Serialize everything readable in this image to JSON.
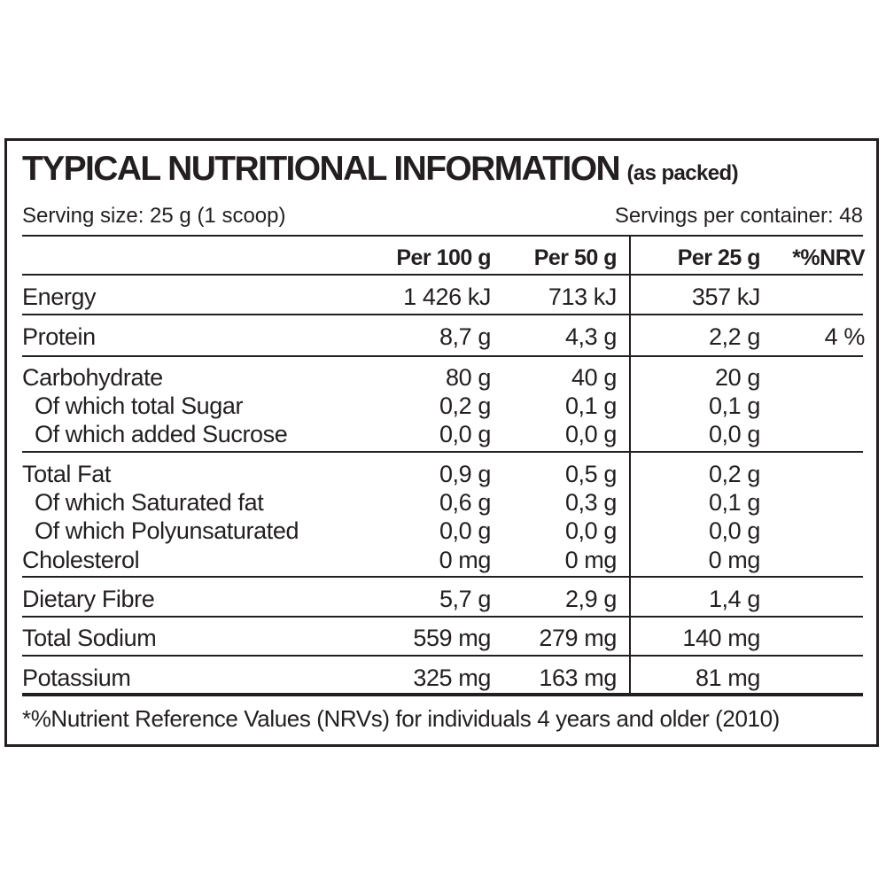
{
  "title": "TYPICAL NUTRITIONAL INFORMATION",
  "title_suffix": "(as packed)",
  "serving_size": "Serving size: 25 g (1 scoop)",
  "servings_per_container": "Servings per container: 48",
  "columns": {
    "per100": "Per 100 g",
    "per50": "Per 50 g",
    "per25": "Per 25 g",
    "nrv": "*%NRV"
  },
  "rows": {
    "energy": {
      "label": "Energy",
      "per100": "1 426 kJ",
      "per50": "713 kJ",
      "per25": "357 kJ",
      "nrv": ""
    },
    "protein": {
      "label": "Protein",
      "per100": "8,7 g",
      "per50": "4,3 g",
      "per25": "2,2 g",
      "nrv": "4 %"
    },
    "carbohydrate": {
      "label": "Carbohydrate",
      "per100": "80 g",
      "per50": "40 g",
      "per25": "20 g",
      "nrv": ""
    },
    "total_sugar": {
      "label": "Of which total Sugar",
      "per100": "0,2 g",
      "per50": "0,1 g",
      "per25": "0,1 g",
      "nrv": ""
    },
    "added_sucrose": {
      "label": "Of which added Sucrose",
      "per100": "0,0 g",
      "per50": "0,0 g",
      "per25": "0,0 g",
      "nrv": ""
    },
    "total_fat": {
      "label": "Total Fat",
      "per100": "0,9 g",
      "per50": "0,5 g",
      "per25": "0,2 g",
      "nrv": ""
    },
    "saturated_fat": {
      "label": "Of which Saturated fat",
      "per100": "0,6 g",
      "per50": "0,3 g",
      "per25": "0,1 g",
      "nrv": ""
    },
    "polyunsaturated": {
      "label": "Of which Polyunsaturated",
      "per100": "0,0 g",
      "per50": "0,0 g",
      "per25": "0,0 g",
      "nrv": ""
    },
    "cholesterol": {
      "label": "Cholesterol",
      "per100": "0 mg",
      "per50": "0 mg",
      "per25": "0 mg",
      "nrv": ""
    },
    "dietary_fibre": {
      "label": "Dietary Fibre",
      "per100": "5,7 g",
      "per50": "2,9 g",
      "per25": "1,4 g",
      "nrv": ""
    },
    "total_sodium": {
      "label": "Total Sodium",
      "per100": "559 mg",
      "per50": "279 mg",
      "per25": "140 mg",
      "nrv": ""
    },
    "potassium": {
      "label": "Potassium",
      "per100": "325 mg",
      "per50": "163 mg",
      "per25": "81 mg",
      "nrv": ""
    }
  },
  "footnote": "*%Nutrient Reference Values (NRVs) for individuals 4 years and older (2010)"
}
